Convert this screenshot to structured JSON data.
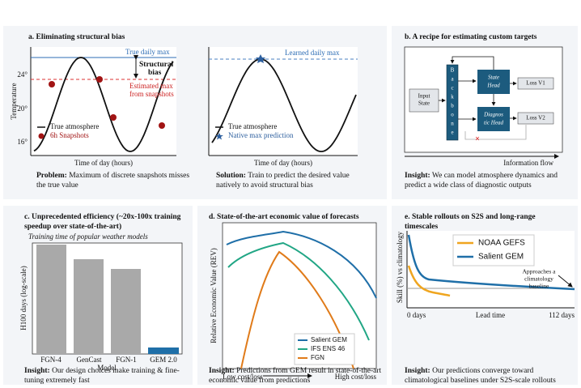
{
  "panel_a": {
    "title": "a. Eliminating structural bias",
    "left_plot": {
      "true_max_label": "True daily max",
      "bias_label_line1": "Structural",
      "bias_label_line2": "bias",
      "estimated_label_line1": "Estimated max",
      "estimated_label_line2": "from snapshots",
      "y_label": "Temperature",
      "y_tick_labels": [
        "24°",
        "20°",
        "16°"
      ],
      "x_label": "Time of day (hours)",
      "legend": [
        "True atmosphere",
        "6h Snapshots"
      ]
    },
    "right_plot": {
      "learned_max_label": "Learned daily max",
      "x_label": "Time of day (hours)",
      "legend": [
        "True atmosphere",
        "Native max prediction"
      ]
    },
    "problem": {
      "label": "Problem:",
      "text": "Maximum of discrete snapshots misses the true value"
    },
    "solution": {
      "label": "Solution:",
      "text": "Train to predict the desired value natively to avoid structural bias"
    }
  },
  "panel_b": {
    "title": "b. A recipe for estimating custom targets",
    "nodes": {
      "input": [
        "Input",
        "State"
      ],
      "backbone": [
        "B",
        "a",
        "c",
        "k",
        "b",
        "o",
        "n",
        "e"
      ],
      "state_head": [
        "State",
        "Head"
      ],
      "diagnostic_head": [
        "Diagnos",
        "tic Head"
      ],
      "loss1": "Loss V1",
      "loss2": "Loss V2"
    },
    "flow_label": "Information flow",
    "insight": {
      "label": "Insight:",
      "text": "We can model atmosphere dynamics and predict a wide class of diagnostic outputs"
    }
  },
  "panel_c": {
    "title_line1": "c. Unprecedented efficiency (~20x-100x training",
    "title_line2": "speedup over state-of-the-art)",
    "subtitle": "Training time of popular weather models",
    "y_label": "H100 days (log-scale)",
    "categories": [
      "FGN-4",
      "GenCast",
      "FGN-1",
      "GEM 2.0"
    ],
    "x_label": "Model",
    "insight": {
      "label": "Insight:",
      "text": "Our design choices make training & fine-tuning extremely fast"
    }
  },
  "panel_d": {
    "title": "d. State-of-the-art economic value of forecasts",
    "y_label": "Relative Economic Value (REV)",
    "x_low": "Low cost/loss",
    "x_high": "High cost/loss",
    "legend": [
      "Salient GEM",
      "IFS ENS 46",
      "FGN"
    ],
    "insight": {
      "label": "Insight:",
      "text": "Predictions from GEM result in state-of-the-art economic value from predictions"
    }
  },
  "panel_e": {
    "title_line1": "e. Stable rollouts on S2S and long-range",
    "title_line2": "timescales",
    "legend": [
      "NOAA GEFS",
      "Salient GEM"
    ],
    "annotation": [
      "Approaches a",
      "climatology",
      "baseline"
    ],
    "y_label": "Skill (%) vs climatology",
    "x_start": "0 days",
    "x_label": "Lead time",
    "x_end": "112 days",
    "insight": {
      "label": "Insight:",
      "text": "Our predictions converge toward climatological baselines under S2S-scale rollouts"
    }
  }
}
